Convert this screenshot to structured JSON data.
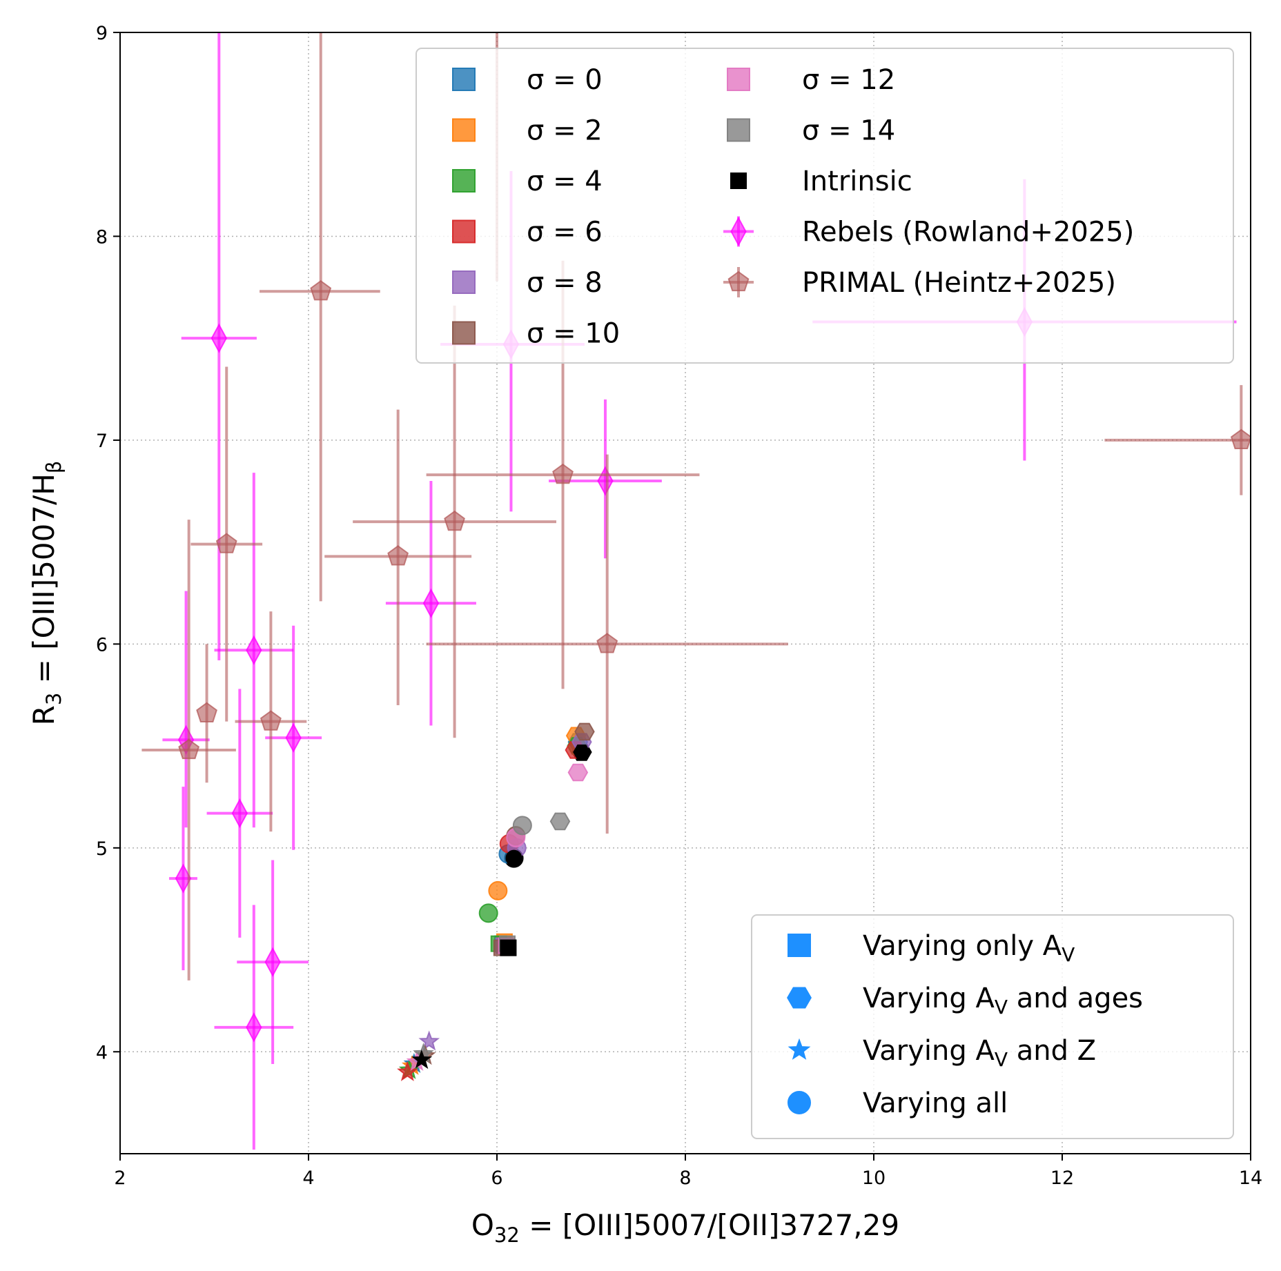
{
  "chart_data": {
    "type": "scatter",
    "xlabel": {
      "main": "O",
      "sub": "32",
      "rest": " = [OIII]5007/[OII]3727,29"
    },
    "ylabel": {
      "main": "R",
      "sub": "3",
      "rest": " = [OIII]5007/H",
      "tail_sub": "β"
    },
    "xlim": [
      2,
      14
    ],
    "ylim": [
      3.5,
      9
    ],
    "xticks": [
      2,
      4,
      6,
      8,
      10,
      12,
      14
    ],
    "yticks": [
      4,
      5,
      6,
      7,
      8,
      9
    ],
    "grid": "dotted",
    "legend_sigma": {
      "placement": "top-center-right",
      "entries": [
        {
          "label": "σ = 0",
          "color": "#1f77b4",
          "marker": "square"
        },
        {
          "label": "σ = 2",
          "color": "#ff7f0e",
          "marker": "square"
        },
        {
          "label": "σ = 4",
          "color": "#2ca02c",
          "marker": "square"
        },
        {
          "label": "σ = 6",
          "color": "#d62728",
          "marker": "square"
        },
        {
          "label": "σ = 8",
          "color": "#9467bd",
          "marker": "square"
        },
        {
          "label": "σ = 10",
          "color": "#8c564b",
          "marker": "square"
        },
        {
          "label": "σ = 12",
          "color": "#e377c2",
          "marker": "square"
        },
        {
          "label": "σ = 14",
          "color": "#7f7f7f",
          "marker": "square"
        },
        {
          "label": "Intrinsic",
          "color": "#000000",
          "marker": "square-small"
        },
        {
          "label": "Rebels (Rowland+2025)",
          "color": "#ff00ff",
          "marker": "thin-diamond-errorbar"
        },
        {
          "label": "PRIMAL (Heintz+2025)",
          "color": "#b35a5a",
          "marker": "pentagon-errorbar"
        }
      ]
    },
    "legend_markers": {
      "placement": "lower-right",
      "color": "#1e90ff",
      "entries": [
        {
          "label": "Varying only A",
          "sub": "V",
          "tail": "",
          "marker": "square"
        },
        {
          "label": "Varying A",
          "sub": "V",
          "tail": " and ages",
          "marker": "hexagon"
        },
        {
          "label": "Varying A",
          "sub": "V",
          "tail": " and Z",
          "marker": "star"
        },
        {
          "label": "Varying all",
          "sub": "",
          "tail": "",
          "marker": "circle"
        }
      ]
    },
    "series": [
      {
        "name": "Rebels (Rowland+2025)",
        "color": "#ff00ff",
        "marker": "thin-diamond",
        "points": [
          {
            "x": 3.05,
            "y": 7.5,
            "xerr": [
              0.4,
              0.4
            ],
            "yerr": [
              1.58,
              1.5
            ]
          },
          {
            "x": 6.15,
            "y": 7.47,
            "xerr": [
              0.75,
              0.78
            ],
            "yerr": [
              0.82,
              0.85
            ]
          },
          {
            "x": 11.6,
            "y": 7.58,
            "xerr": [
              2.25,
              2.25
            ],
            "yerr": [
              0.68,
              0.7
            ]
          },
          {
            "x": 7.15,
            "y": 6.8,
            "xerr": [
              0.6,
              0.6
            ],
            "yerr": [
              0.38,
              0.4
            ]
          },
          {
            "x": 5.3,
            "y": 6.2,
            "xerr": [
              0.48,
              0.48
            ],
            "yerr": [
              0.6,
              0.6
            ]
          },
          {
            "x": 3.42,
            "y": 5.97,
            "xerr": [
              0.42,
              0.42
            ],
            "yerr": [
              0.87,
              0.87
            ]
          },
          {
            "x": 3.84,
            "y": 5.54,
            "xerr": [
              0.3,
              0.3
            ],
            "yerr": [
              0.55,
              0.55
            ]
          },
          {
            "x": 2.7,
            "y": 5.53,
            "xerr": [
              0.25,
              0.25
            ],
            "yerr": [
              0.43,
              0.73
            ]
          },
          {
            "x": 3.27,
            "y": 5.17,
            "xerr": [
              0.35,
              0.35
            ],
            "yerr": [
              0.61,
              0.61
            ]
          },
          {
            "x": 2.67,
            "y": 4.85,
            "xerr": [
              0.15,
              0.15
            ],
            "yerr": [
              0.45,
              0.45
            ]
          },
          {
            "x": 3.62,
            "y": 4.44,
            "xerr": [
              0.38,
              0.38
            ],
            "yerr": [
              0.5,
              0.5
            ]
          },
          {
            "x": 3.42,
            "y": 4.12,
            "xerr": [
              0.42,
              0.42
            ],
            "yerr": [
              0.6,
              0.6
            ]
          }
        ]
      },
      {
        "name": "PRIMAL (Heintz+2025)",
        "color": "#b35a5a",
        "marker": "pentagon",
        "points": [
          {
            "x": 4.13,
            "y": 7.73,
            "xerr": [
              0.65,
              0.63
            ],
            "yerr": [
              1.52,
              1.4
            ]
          },
          {
            "x": 6.0,
            "y": 9.1,
            "xerr": [
              0,
              0
            ],
            "yerr": [
              1.32,
              0
            ]
          },
          {
            "x": 6.7,
            "y": 6.83,
            "xerr": [
              1.45,
              1.45
            ],
            "yerr": [
              1.05,
              1.05
            ]
          },
          {
            "x": 5.55,
            "y": 6.6,
            "xerr": [
              1.08,
              1.08
            ],
            "yerr": [
              1.06,
              1.06
            ]
          },
          {
            "x": 4.95,
            "y": 6.43,
            "xerr": [
              0.78,
              0.78
            ],
            "yerr": [
              0.73,
              0.72
            ]
          },
          {
            "x": 7.17,
            "y": 6.0,
            "xerr": [
              1.92,
              1.92
            ],
            "yerr": [
              0.93,
              0.93
            ]
          },
          {
            "x": 3.13,
            "y": 6.49,
            "xerr": [
              0.38,
              0.38
            ],
            "yerr": [
              0.87,
              0.87
            ]
          },
          {
            "x": 2.92,
            "y": 5.66,
            "xerr": [
              0,
              0
            ],
            "yerr": [
              0.34,
              0.34
            ]
          },
          {
            "x": 3.6,
            "y": 5.62,
            "xerr": [
              0.38,
              0.38
            ],
            "yerr": [
              0.54,
              0.54
            ]
          },
          {
            "x": 2.73,
            "y": 5.48,
            "xerr": [
              0.5,
              0.5
            ],
            "yerr": [
              1.13,
              1.13
            ]
          },
          {
            "x": 13.9,
            "y": 7.0,
            "xerr": [
              1.45,
              0.1
            ],
            "yerr": [
              0.27,
              0.27
            ]
          }
        ]
      },
      {
        "name": "Intrinsic",
        "color": "#000000",
        "points": [
          {
            "x": 6.12,
            "y": 4.51,
            "marker": "square"
          },
          {
            "x": 6.9,
            "y": 5.47,
            "marker": "hexagon"
          },
          {
            "x": 6.18,
            "y": 4.95,
            "marker": "circle"
          },
          {
            "x": 5.2,
            "y": 3.96,
            "marker": "star"
          }
        ]
      },
      {
        "name": "σ = 0",
        "color": "#1f77b4",
        "points": [
          {
            "x": 6.06,
            "y": 4.53,
            "marker": "square"
          },
          {
            "x": 6.86,
            "y": 5.52,
            "marker": "hexagon"
          },
          {
            "x": 6.12,
            "y": 4.97,
            "marker": "circle"
          },
          {
            "x": 5.12,
            "y": 3.94,
            "marker": "star"
          }
        ]
      },
      {
        "name": "σ = 2",
        "color": "#ff7f0e",
        "points": [
          {
            "x": 6.08,
            "y": 4.54,
            "marker": "square"
          },
          {
            "x": 6.84,
            "y": 5.55,
            "marker": "hexagon"
          },
          {
            "x": 6.01,
            "y": 4.79,
            "marker": "circle"
          },
          {
            "x": 5.1,
            "y": 3.93,
            "marker": "star"
          }
        ]
      },
      {
        "name": "σ = 4",
        "color": "#2ca02c",
        "points": [
          {
            "x": 6.02,
            "y": 4.53,
            "marker": "square"
          },
          {
            "x": 6.85,
            "y": 5.5,
            "marker": "hexagon"
          },
          {
            "x": 5.91,
            "y": 4.68,
            "marker": "circle"
          },
          {
            "x": 5.07,
            "y": 3.91,
            "marker": "star"
          }
        ]
      },
      {
        "name": "σ = 6",
        "color": "#d62728",
        "points": [
          {
            "x": 6.09,
            "y": 4.52,
            "marker": "square"
          },
          {
            "x": 6.83,
            "y": 5.48,
            "marker": "hexagon"
          },
          {
            "x": 6.13,
            "y": 5.02,
            "marker": "circle"
          },
          {
            "x": 5.05,
            "y": 3.9,
            "marker": "star"
          }
        ]
      },
      {
        "name": "σ = 8",
        "color": "#9467bd",
        "points": [
          {
            "x": 6.07,
            "y": 4.52,
            "marker": "square"
          },
          {
            "x": 6.9,
            "y": 5.52,
            "marker": "hexagon"
          },
          {
            "x": 6.21,
            "y": 5.0,
            "marker": "circle"
          },
          {
            "x": 5.28,
            "y": 4.05,
            "marker": "star"
          }
        ]
      },
      {
        "name": "σ = 10",
        "color": "#8c564b",
        "points": [
          {
            "x": 6.05,
            "y": 4.51,
            "marker": "square"
          },
          {
            "x": 6.93,
            "y": 5.57,
            "marker": "hexagon"
          },
          {
            "x": 6.2,
            "y": 5.06,
            "marker": "circle"
          },
          {
            "x": 5.24,
            "y": 3.98,
            "marker": "star"
          }
        ]
      },
      {
        "name": "σ = 12",
        "color": "#e377c2",
        "points": [
          {
            "x": 6.1,
            "y": 4.52,
            "marker": "square"
          },
          {
            "x": 6.86,
            "y": 5.37,
            "marker": "hexagon"
          },
          {
            "x": 6.2,
            "y": 5.05,
            "marker": "circle"
          },
          {
            "x": 5.15,
            "y": 3.95,
            "marker": "star"
          }
        ]
      },
      {
        "name": "σ = 14",
        "color": "#7f7f7f",
        "points": [
          {
            "x": 6.11,
            "y": 4.53,
            "marker": "square"
          },
          {
            "x": 6.67,
            "y": 5.13,
            "marker": "hexagon"
          },
          {
            "x": 6.27,
            "y": 5.11,
            "marker": "circle"
          },
          {
            "x": 5.22,
            "y": 3.99,
            "marker": "star"
          }
        ]
      }
    ]
  }
}
